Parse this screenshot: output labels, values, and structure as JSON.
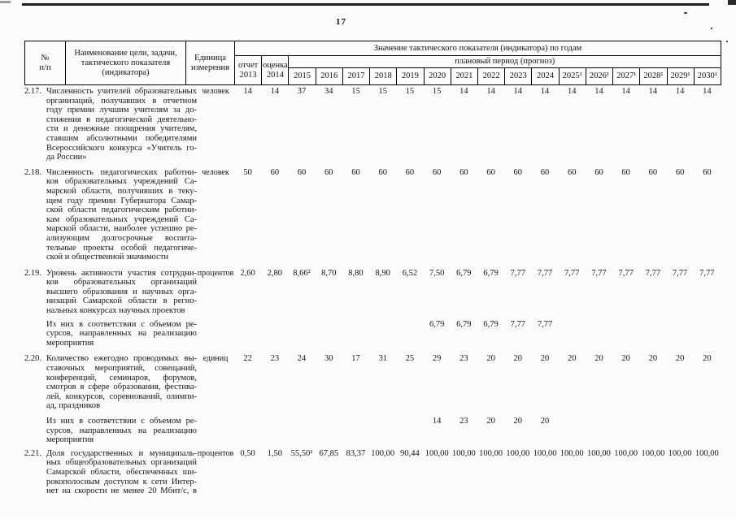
{
  "page": {
    "number": "17"
  },
  "table": {
    "header": {
      "col_num": [
        "№",
        "п/п"
      ],
      "col_name": [
        "Наименование цели, задачи,",
        "тактического показателя",
        "(индикатора)"
      ],
      "col_unit": [
        "Единица",
        "измерения"
      ],
      "values_title": "Значение тактического показателя (индикатора) по годам",
      "report": [
        "отчет",
        "2013"
      ],
      "estimate": [
        "оценка",
        "2014"
      ],
      "plan_period": "плановый период (прогноз)",
      "years": [
        "2015",
        "2016",
        "2017",
        "2018",
        "2019",
        "2020",
        "2021",
        "2022",
        "2023",
        "2024",
        "2025¹",
        "2026¹",
        "2027¹",
        "2028¹",
        "2029¹",
        "2030¹"
      ]
    },
    "rows": [
      {
        "num": "2.17.",
        "name": [
          "Численность учителей образовательных",
          "организаций, получавших в отчетном",
          "году премии лучшим учителям за до-",
          "стижения в педагогической деятельно-",
          "сти и денежные поощрения учителям,",
          "ставшим абсолютными победителями",
          "Всероссийского конкурса «Учитель го-",
          "да России»"
        ],
        "unit": "человек",
        "cutoff": false,
        "values": [
          "14",
          "14",
          "37",
          "34",
          "15",
          "15",
          "15",
          "15",
          "14",
          "14",
          "14",
          "14",
          "14",
          "14",
          "14",
          "14",
          "14",
          "14"
        ]
      },
      {
        "num": "2.18.",
        "name": [
          "Численность педагогических работни-",
          "ков образовательных учреждений Са-",
          "марской области, получивших в теку-",
          "щем году премии Губернатора Самар-",
          "ской области педагогическим работни-",
          "кам образовательных учреждений Са-",
          "марской области, наиболее успешно ре-",
          "ализующим долгосрочные воспита-",
          "тельные проекты особой педагогиче-",
          "ской и общественной значимости"
        ],
        "unit": "человек",
        "cutoff": false,
        "values": [
          "50",
          "60",
          "60",
          "60",
          "60",
          "60",
          "60",
          "60",
          "60",
          "60",
          "60",
          "60",
          "60",
          "60",
          "60",
          "60",
          "60",
          "60"
        ]
      },
      {
        "num": "2.19.",
        "name": [
          "Уровень активности участия сотрудни-",
          "ков образовательных организаций",
          "высшего образования и научных орга-",
          "низаций Самарской области в регио-",
          "нальных конкурсах научных проектов"
        ],
        "unit": "процентов",
        "cutoff": false,
        "values": [
          "2,60",
          "2,80",
          "8,66²",
          "8,70",
          "8,80",
          "8,90",
          "6,52",
          "7,50",
          "6,79",
          "6,79",
          "7,77",
          "7,77",
          "7,77",
          "7,77",
          "7,77",
          "7,77",
          "7,77",
          "7,77"
        ]
      },
      {
        "num": "",
        "name": [
          "Из них в соответствии с объемом ре-",
          "сурсов, направленных на реализацию",
          "мероприятия"
        ],
        "unit": "",
        "cutoff": false,
        "values": [
          "",
          "",
          "",
          "",
          "",
          "",
          "",
          "6,79",
          "6,79",
          "6,79",
          "7,77",
          "7,77",
          "",
          "",
          "",
          "",
          "",
          ""
        ]
      },
      {
        "num": "2.20.",
        "name": [
          "Количество ежегодно проводимых вы-",
          "ставочных мероприятий, совещаний,",
          "конференций, семинаров, форумов,",
          "смотров в сфере образования, фестива-",
          "лей, конкурсов, соревнований, олимпи-",
          "ад, праздников"
        ],
        "unit": "единиц",
        "cutoff": false,
        "values": [
          "22",
          "23",
          "24",
          "30",
          "17",
          "31",
          "25",
          "29",
          "23",
          "20",
          "20",
          "20",
          "20",
          "20",
          "20",
          "20",
          "20",
          "20"
        ]
      },
      {
        "num": "",
        "name": [
          "Из них в соответствии с объемом ре-",
          "сурсов, направленных на реализацию",
          "мероприятия"
        ],
        "unit": "",
        "cutoff": false,
        "values": [
          "",
          "",
          "",
          "",
          "",
          "",
          "",
          "14",
          "23",
          "20",
          "20",
          "20",
          "",
          "",
          "",
          "",
          "",
          ""
        ]
      },
      {
        "num": "2.21.",
        "name": [
          "Доля государственных и муниципаль-",
          "ных общеобразовательных организаций",
          "Самарской области, обеспеченных ши-",
          "рокополосным доступом к сети Интер-",
          "нет на скорости не менее 20 Мбит/с, в"
        ],
        "unit": "процентов",
        "cutoff": true,
        "values": [
          "0,50",
          "1,50",
          "55,50²",
          "67,85",
          "83,37",
          "100,00",
          "90,44",
          "100,00",
          "100,00",
          "100,00",
          "100,00",
          "100,00",
          "100,00",
          "100,00",
          "100,00",
          "100,00",
          "100,00",
          "100,00"
        ]
      }
    ]
  }
}
